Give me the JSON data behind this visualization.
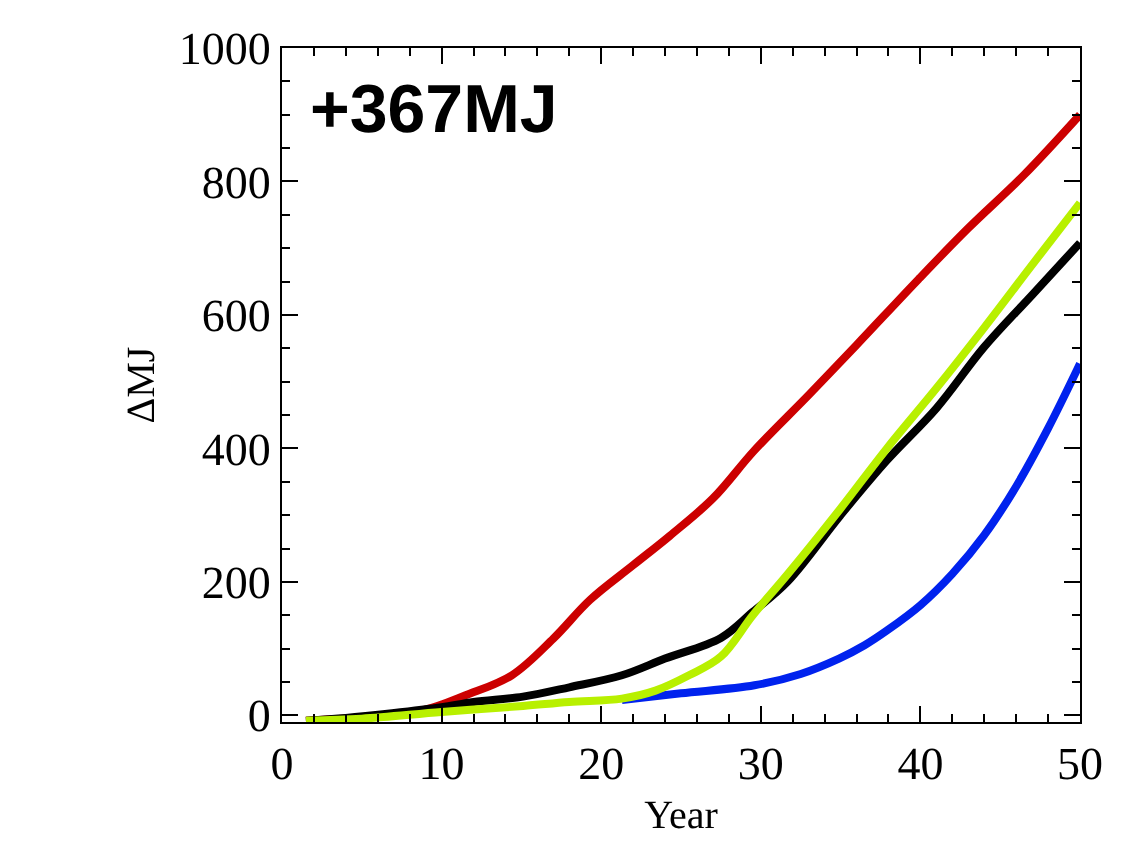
{
  "chart_data": {
    "type": "line",
    "xlabel": "Year",
    "ylabel": "ΔMJ",
    "annotations": [
      "+367MJ"
    ],
    "xlim": [
      0,
      50
    ],
    "ylim": [
      -10,
      1000
    ],
    "xticks": [
      0,
      10,
      20,
      30,
      40,
      50
    ],
    "yticks": [
      0,
      200,
      400,
      600,
      800,
      1000
    ],
    "grid": false,
    "marker": "none",
    "line_style": "solid",
    "series": [
      {
        "color": "#cc0000",
        "x": [
          1.5,
          5,
          8.9,
          11.5,
          14.4,
          17,
          19.3,
          22,
          24.3,
          27,
          29.6,
          33,
          36,
          39.9,
          43,
          46.5,
          50
        ],
        "values": [
          -8,
          -3,
          8,
          30,
          60,
          115,
          173,
          225,
          269,
          325,
          397,
          480,
          555,
          654,
          730,
          810,
          900
        ]
      },
      {
        "color": "#000000",
        "x": [
          1.5,
          4,
          6.9,
          10,
          12,
          15.1,
          18,
          21.3,
          24,
          27.5,
          29.5,
          31.7,
          35,
          37.9,
          41,
          44,
          47,
          50
        ],
        "values": [
          -8,
          -4,
          3,
          12,
          20,
          28,
          42,
          60,
          85,
          116,
          155,
          201,
          300,
          382,
          460,
          552,
          630,
          708
        ]
      },
      {
        "color": "#0022ee",
        "x": [
          21.3,
          25,
          29.6,
          32.5,
          34.9,
          36.5,
          37.9,
          40,
          42,
          44,
          46,
          48,
          50
        ],
        "values": [
          23,
          33,
          45,
          62,
          85,
          105,
          127,
          165,
          212,
          270,
          343,
          430,
          527
        ]
      },
      {
        "color": "#b8f000",
        "x": [
          1.5,
          5,
          10,
          15.1,
          18,
          21.3,
          23.4,
          25.5,
          27.5,
          29.5,
          31.7,
          35,
          37.9,
          41,
          44,
          47,
          50
        ],
        "values": [
          -8,
          -5,
          5,
          14,
          20,
          25,
          37,
          60,
          88,
          150,
          212,
          310,
          400,
          490,
          581,
          675,
          768
        ]
      }
    ]
  }
}
